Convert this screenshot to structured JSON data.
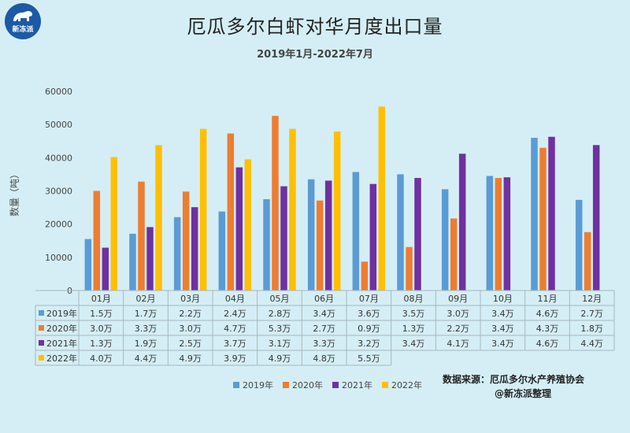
{
  "header": {
    "title": "厄瓜多尔白虾对华月度出口量",
    "subtitle": "2019年1月-2022年7月",
    "logo_text": "新冻派"
  },
  "source": {
    "line1": "数据来源：厄瓜多尔水产养殖协会",
    "line2": "@新冻派整理"
  },
  "colors": {
    "2019年": "#5b9bd5",
    "2020年": "#ed7d31",
    "2021年": "#7030a0",
    "2022年": "#ffc000"
  },
  "chart_data": {
    "type": "bar",
    "title": "厄瓜多尔白虾对华月度出口量",
    "subtitle": "2019年1月-2022年7月",
    "xlabel": "",
    "ylabel": "数量（吨）",
    "ylim": [
      0,
      60000
    ],
    "yticks": [
      "0",
      "10000",
      "20000",
      "30000",
      "40000",
      "50000",
      "60000"
    ],
    "grid": false,
    "legend_position": "bottom",
    "categories": [
      "01月",
      "02月",
      "03月",
      "04月",
      "05月",
      "06月",
      "07月",
      "08月",
      "09月",
      "10月",
      "11月",
      "12月"
    ],
    "series": [
      {
        "name": "2019年",
        "values": [
          15500,
          17100,
          22100,
          23800,
          27500,
          33500,
          35700,
          35000,
          30500,
          34500,
          46000,
          27300
        ]
      },
      {
        "name": "2020年",
        "values": [
          30000,
          32800,
          29800,
          47300,
          52600,
          27100,
          8700,
          13100,
          21700,
          33900,
          43000,
          17600
        ]
      },
      {
        "name": "2021年",
        "values": [
          12900,
          19100,
          25100,
          37100,
          31400,
          33100,
          32100,
          33900,
          41200,
          34100,
          46300,
          43800
        ]
      },
      {
        "name": "2022年",
        "values": [
          40200,
          43800,
          48700,
          39500,
          48700,
          47900,
          55400,
          null,
          null,
          null,
          null,
          null
        ]
      }
    ],
    "table_rows": [
      {
        "name": "2019年",
        "cells": [
          "1.5万",
          "1.7万",
          "2.2万",
          "2.4万",
          "2.8万",
          "3.4万",
          "3.6万",
          "3.5万",
          "3.0万",
          "3.4万",
          "4.6万",
          "2.7万"
        ]
      },
      {
        "name": "2020年",
        "cells": [
          "3.0万",
          "3.3万",
          "3.0万",
          "4.7万",
          "5.3万",
          "2.7万",
          "0.9万",
          "1.3万",
          "2.2万",
          "3.4万",
          "4.3万",
          "1.8万"
        ]
      },
      {
        "name": "2021年",
        "cells": [
          "1.3万",
          "1.9万",
          "2.5万",
          "3.7万",
          "3.1万",
          "3.3万",
          "3.2万",
          "3.4万",
          "4.1万",
          "3.4万",
          "4.6万",
          "4.4万"
        ]
      },
      {
        "name": "2022年",
        "cells": [
          "4.0万",
          "4.4万",
          "4.9万",
          "3.9万",
          "4.9万",
          "4.8万",
          "5.5万",
          "",
          "",
          "",
          "",
          ""
        ]
      }
    ]
  }
}
